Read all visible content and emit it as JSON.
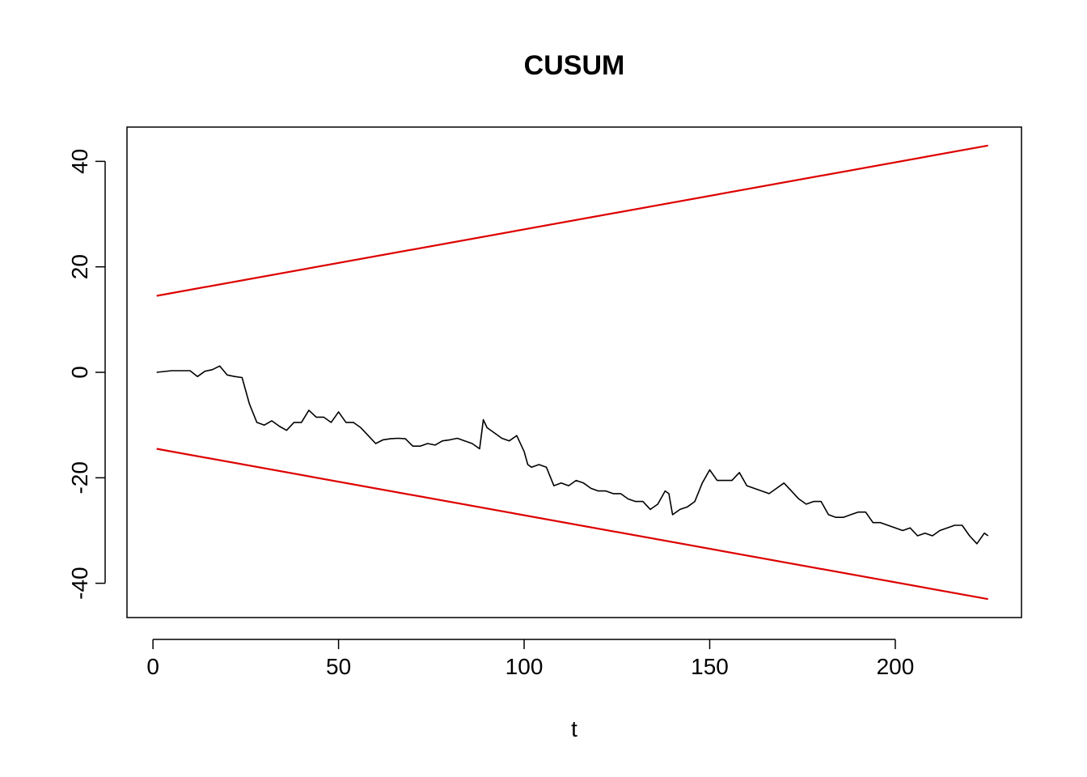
{
  "chart_data": {
    "type": "line",
    "title": "CUSUM",
    "xlabel": "t",
    "ylabel": "",
    "xlim": [
      -7,
      234
    ],
    "ylim": [
      -46.5,
      46.5
    ],
    "x_ticks": [
      0,
      50,
      100,
      150,
      200
    ],
    "y_ticks": [
      -40,
      -20,
      0,
      20,
      40
    ],
    "grid": false,
    "series": [
      {
        "color": "#000000",
        "x": [
          1,
          5,
          10,
          12,
          14,
          16,
          18,
          20,
          22,
          24,
          26,
          28,
          30,
          32,
          34,
          36,
          38,
          40,
          42,
          44,
          46,
          48,
          50,
          52,
          54,
          56,
          58,
          60,
          62,
          64,
          66,
          68,
          70,
          72,
          74,
          76,
          78,
          80,
          82,
          84,
          86,
          88,
          89,
          90,
          92,
          94,
          96,
          98,
          100,
          101,
          102,
          104,
          106,
          108,
          110,
          112,
          114,
          116,
          118,
          120,
          122,
          124,
          126,
          128,
          130,
          132,
          134,
          136,
          138,
          139,
          140,
          142,
          144,
          146,
          148,
          150,
          152,
          154,
          156,
          158,
          160,
          162,
          164,
          166,
          168,
          170,
          172,
          174,
          176,
          178,
          180,
          182,
          184,
          186,
          188,
          190,
          192,
          194,
          196,
          198,
          200,
          202,
          204,
          206,
          208,
          210,
          212,
          214,
          216,
          218,
          220,
          222,
          224,
          225
        ],
        "y": [
          0,
          0.3,
          0.3,
          -0.8,
          0.2,
          0.5,
          1.2,
          -0.5,
          -0.8,
          -1,
          -6,
          -9.5,
          -10,
          -9.2,
          -10.2,
          -11,
          -9.5,
          -9.5,
          -7.2,
          -8.5,
          -8.5,
          -9.5,
          -7.5,
          -9.5,
          -9.5,
          -10.5,
          -12,
          -13.5,
          -12.8,
          -12.6,
          -12.5,
          -12.6,
          -14,
          -14,
          -13.5,
          -13.8,
          -13,
          -12.8,
          -12.5,
          -13,
          -13.5,
          -14.5,
          -9,
          -10.5,
          -11.5,
          -12.5,
          -13,
          -12,
          -15,
          -17.5,
          -18,
          -17.5,
          -18,
          -21.5,
          -21,
          -21.5,
          -20.5,
          -21,
          -22,
          -22.5,
          -22.5,
          -23,
          -23,
          -24,
          -24.5,
          -24.5,
          -26,
          -25,
          -22.5,
          -23,
          -27,
          -26,
          -25.5,
          -24.5,
          -21,
          -18.5,
          -20.5,
          -20.5,
          -20.5,
          -19,
          -21.5,
          -22,
          -22.5,
          -23,
          -22,
          -21,
          -22.5,
          -24,
          -25,
          -24.5,
          -24.5,
          -27,
          -27.5,
          -27.5,
          -27,
          -26.5,
          -26.5,
          -28.5,
          -28.5,
          -29,
          -29.5,
          -30,
          -29.5,
          -31,
          -30.5,
          -31,
          -30,
          -29.5,
          -29,
          -29,
          -31,
          -32.5,
          -30.5,
          -31
        ]
      },
      {
        "color": "#dd0000",
        "x": [
          1,
          225
        ],
        "y": [
          14.5,
          43
        ]
      },
      {
        "color": "#dd0000",
        "x": [
          1,
          225
        ],
        "y": [
          -14.5,
          -43
        ]
      }
    ]
  }
}
